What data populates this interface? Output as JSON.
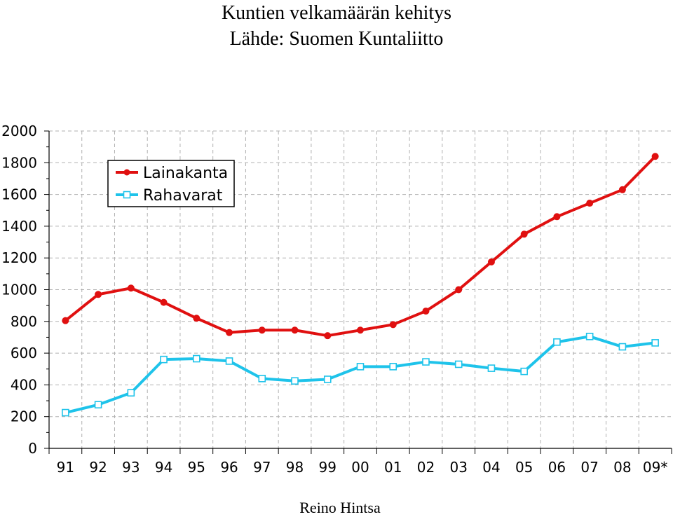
{
  "header": {
    "title": "Kuntien velkamäärän kehitys",
    "subtitle": "Lähde: Suomen Kuntaliitto"
  },
  "footer": {
    "author": "Reino Hintsa"
  },
  "chart_data": {
    "type": "line",
    "title": "Kuntien velkamäärän kehitys",
    "subtitle": "Lähde: Suomen Kuntaliitto",
    "xlabel": "",
    "ylabel": "",
    "categories": [
      "91",
      "92",
      "93",
      "94",
      "95",
      "96",
      "97",
      "98",
      "99",
      "00",
      "01",
      "02",
      "03",
      "04",
      "05",
      "06",
      "07",
      "08",
      "09*"
    ],
    "ylim": [
      0,
      2000
    ],
    "yticks": [
      0,
      200,
      400,
      600,
      800,
      1000,
      1200,
      1400,
      1600,
      1800,
      2000
    ],
    "grid": true,
    "legend_position": "top-left",
    "series": [
      {
        "name": "Lainakanta",
        "color": "#e01010",
        "marker": "circle",
        "values": [
          805,
          970,
          1010,
          920,
          820,
          730,
          745,
          745,
          710,
          745,
          780,
          865,
          1000,
          1175,
          1350,
          1460,
          1545,
          1630,
          1840
        ]
      },
      {
        "name": "Rahavarat",
        "color": "#1ec3ea",
        "marker": "square",
        "values": [
          225,
          275,
          350,
          560,
          565,
          550,
          440,
          425,
          435,
          515,
          515,
          545,
          530,
          505,
          485,
          670,
          705,
          640,
          665
        ]
      }
    ]
  }
}
